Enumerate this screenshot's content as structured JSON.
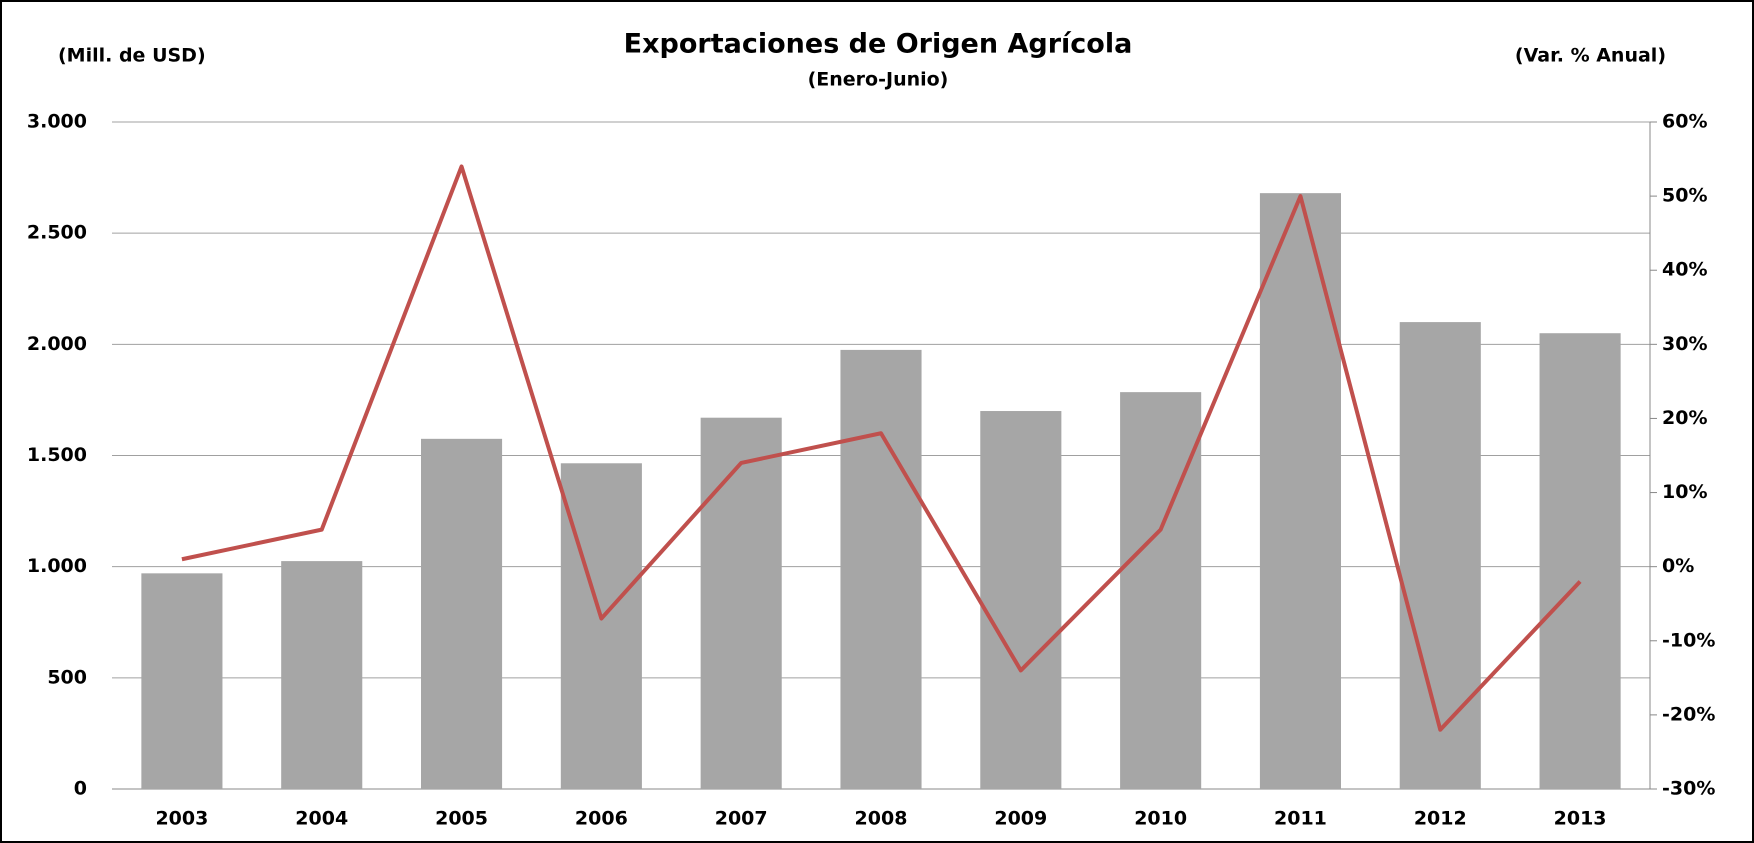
{
  "chart_data": {
    "type": "bar_line",
    "title": "Exportaciones de Origen Agrícola",
    "subtitle": "(Enero-Junio)",
    "ylabel": "(Mill. de USD)",
    "y2label": "(Var. % Anual)",
    "categories": [
      "2003",
      "2004",
      "2005",
      "2006",
      "2007",
      "2008",
      "2009",
      "2010",
      "2011",
      "2012",
      "2013"
    ],
    "series": [
      {
        "type": "bar",
        "color": "#a6a6a6",
        "values": [
          970,
          1025,
          1575,
          1465,
          1670,
          1975,
          1700,
          1785,
          2680,
          2100,
          2050
        ]
      },
      {
        "type": "line",
        "axis": "y2",
        "color": "#c0504d",
        "values": [
          1,
          5,
          54,
          -7,
          14,
          18,
          -14,
          5,
          50,
          -22,
          -2
        ]
      }
    ],
    "ylim": [
      0,
      3000
    ],
    "yticks": [
      0,
      500,
      {
        "value": 1000,
        "label": "1.000"
      },
      {
        "value": 1500,
        "label": "1.500"
      },
      {
        "value": 2000,
        "label": "2.000"
      },
      {
        "value": 2500,
        "label": "2.500"
      },
      {
        "value": 3000,
        "label": "3.000"
      }
    ],
    "y2lim": [
      -30,
      60
    ],
    "y2ticks": [
      {
        "value": -30,
        "label": "-30%"
      },
      {
        "value": -20,
        "label": "-20%"
      },
      {
        "value": -10,
        "label": "-10%"
      },
      {
        "value": 0,
        "label": "0%"
      },
      {
        "value": 10,
        "label": "10%"
      },
      {
        "value": 20,
        "label": "20%"
      },
      {
        "value": 30,
        "label": "30%"
      },
      {
        "value": 40,
        "label": "40%"
      },
      {
        "value": 50,
        "label": "50%"
      },
      {
        "value": 60,
        "label": "60%"
      }
    ],
    "y2color": "#c00000",
    "grid": true
  }
}
